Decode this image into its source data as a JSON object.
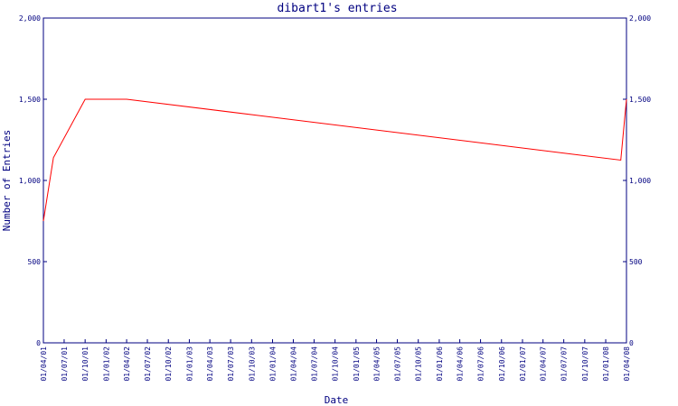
{
  "chart_data": {
    "type": "line",
    "title": "dibart1's entries",
    "xlabel": "Date",
    "ylabel": "Number of Entries",
    "ylim": [
      0,
      2000
    ],
    "y_ticks": [
      0,
      500,
      1000,
      1500,
      2000
    ],
    "y_tick_labels": [
      "0",
      "500",
      "1,000",
      "1,500",
      "2,000"
    ],
    "x_ticks": [
      "01/04/01",
      "01/07/01",
      "01/10/01",
      "01/01/02",
      "01/04/02",
      "01/07/02",
      "01/10/02",
      "01/01/03",
      "01/04/03",
      "01/07/03",
      "01/10/03",
      "01/01/04",
      "01/04/04",
      "01/07/04",
      "01/10/04",
      "01/01/05",
      "01/04/05",
      "01/07/05",
      "01/10/05",
      "01/01/06",
      "01/04/06",
      "01/07/06",
      "01/10/06",
      "01/01/07",
      "01/04/07",
      "01/07/07",
      "01/10/07",
      "01/01/08",
      "01/04/08"
    ],
    "grid": false,
    "series": [
      {
        "color": "#ff0000",
        "x": [
          "01/04/01",
          "15/05/01",
          "01/10/01",
          "01/04/02",
          "07/03/08",
          "01/04/08"
        ],
        "y": [
          750,
          1140,
          1500,
          1500,
          1125,
          1500
        ]
      }
    ],
    "colors": {
      "axis": "#000080",
      "line": "#ff0000",
      "background": "#ffffff"
    }
  }
}
